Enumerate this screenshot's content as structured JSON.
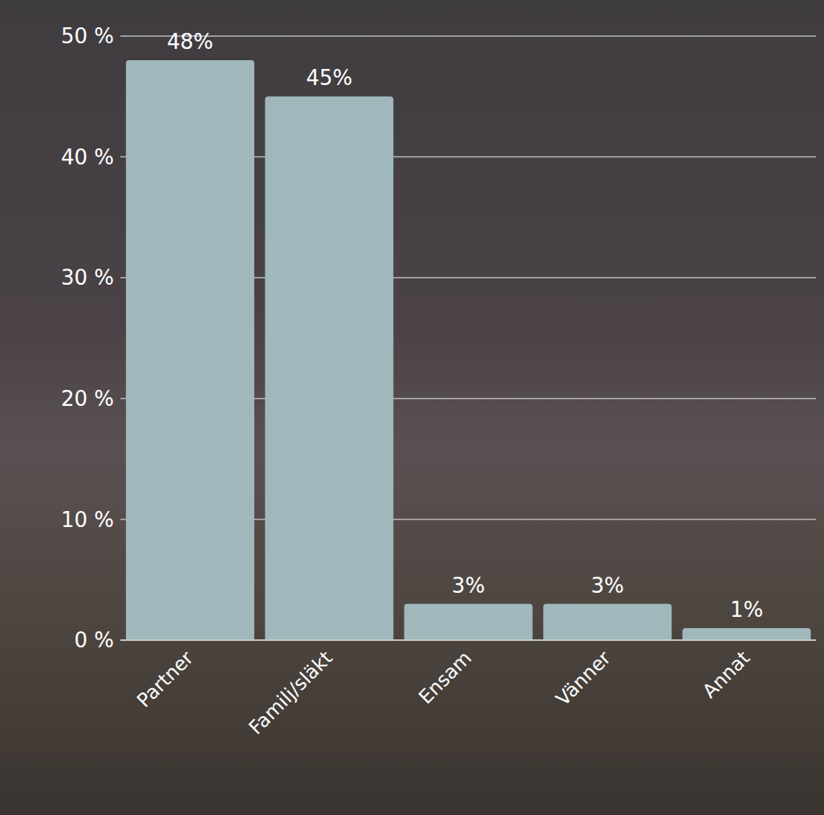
{
  "chart_data": {
    "type": "bar",
    "categories": [
      "Partner",
      "Familj/släkt",
      "Ensam",
      "Vänner",
      "Annat"
    ],
    "values": [
      48,
      45,
      3,
      3,
      1
    ],
    "value_labels": [
      "48%",
      "45%",
      "3%",
      "3%",
      "1%"
    ],
    "data_labels": true,
    "color": "#a0b8bc",
    "ylim": [
      0,
      50
    ],
    "yticks": [
      {
        "value": 0,
        "label": "0 %"
      },
      {
        "value": 10,
        "label": "10 %"
      },
      {
        "value": 20,
        "label": "20 %"
      },
      {
        "value": 30,
        "label": "30 %"
      },
      {
        "value": 40,
        "label": "40 %"
      },
      {
        "value": 50,
        "label": "50 %"
      }
    ],
    "grid": true
  }
}
